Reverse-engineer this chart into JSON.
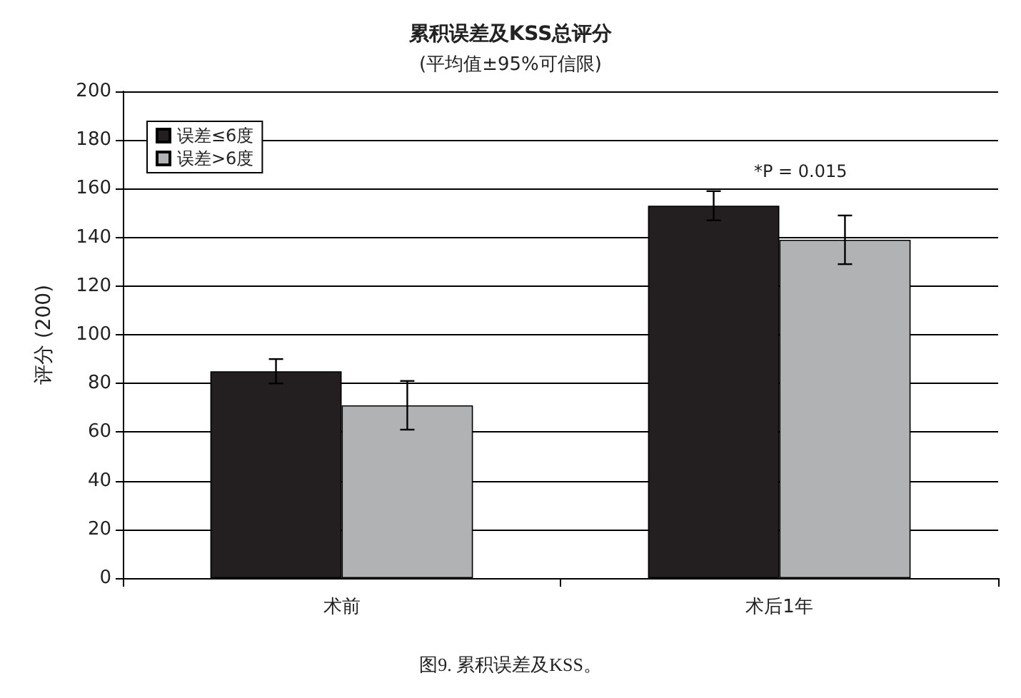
{
  "chart_data": {
    "type": "bar",
    "title": "累积误差及KSS总评分",
    "subtitle": "(平均值±95%可信限)",
    "ylabel": "评分 (200)",
    "categories": [
      "术前",
      "术后1年"
    ],
    "series": [
      {
        "name": "误差≤6度",
        "color": "#231f20",
        "values": [
          85,
          153
        ],
        "errors": [
          [
            80,
            90
          ],
          [
            147,
            159
          ]
        ]
      },
      {
        "name": "误差>6度",
        "color": "#b1b2b4",
        "values": [
          71,
          139
        ],
        "errors": [
          [
            61,
            81
          ],
          [
            129,
            149
          ]
        ]
      }
    ],
    "ylim": [
      0,
      200
    ],
    "yticks": [
      0,
      20,
      40,
      60,
      80,
      100,
      120,
      140,
      160,
      180,
      200
    ],
    "grid": "y",
    "legend": "top left",
    "annotations": [
      "*P = 0.015",
      "图9. 累积误差及KSS。"
    ]
  }
}
